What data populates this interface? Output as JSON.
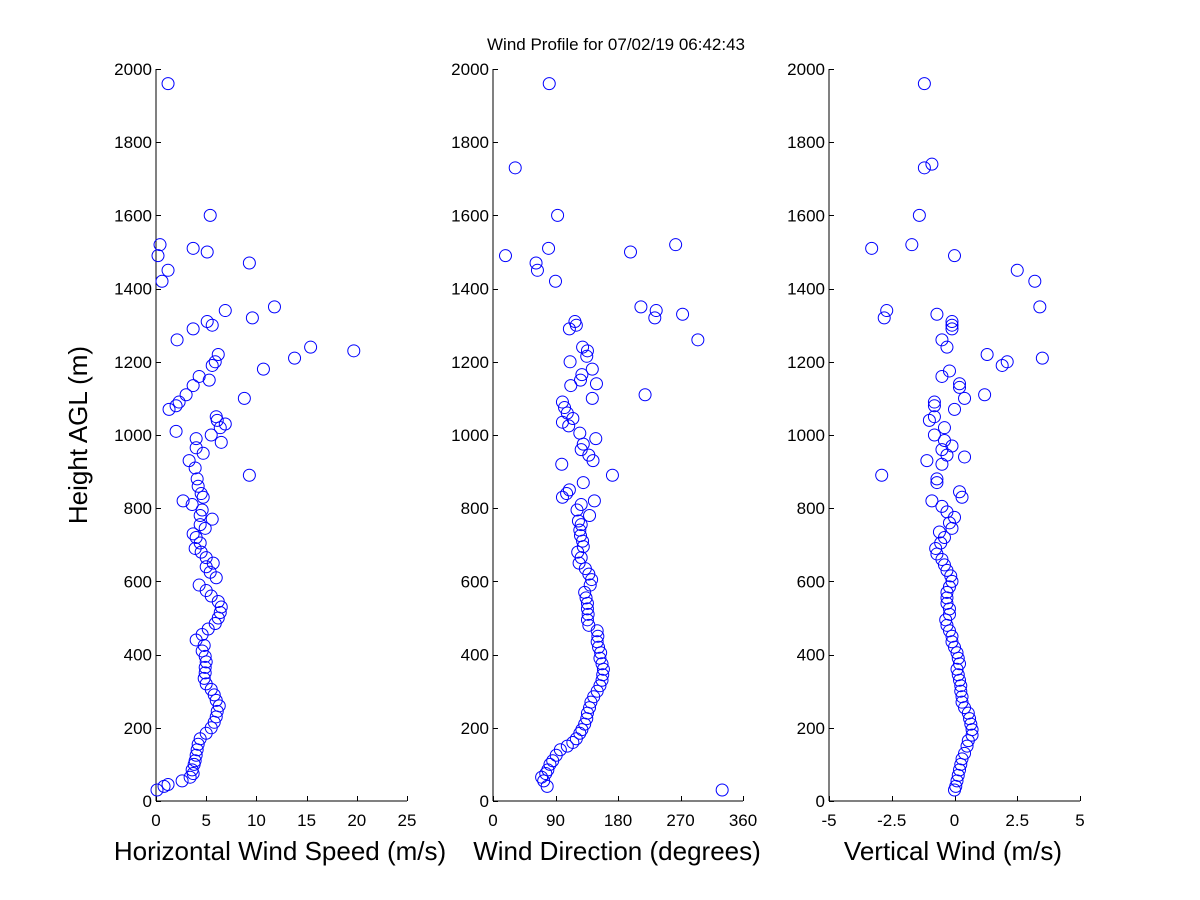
{
  "chart_data": {
    "title": "Wind Profile for  07/02/19 06:42:43",
    "ylabel": "Height AGL (m)",
    "ylim": [
      0,
      2000
    ],
    "yticks": [
      0,
      200,
      400,
      600,
      800,
      1000,
      1200,
      1400,
      1600,
      1800,
      2000
    ],
    "marker_color": "#0000ff",
    "panels": [
      {
        "type": "scatter",
        "xlabel": "Horizontal Wind Speed (m/s)",
        "xlim": [
          0,
          25
        ],
        "xticks": [
          0,
          5,
          10,
          15,
          20,
          25
        ],
        "xtick_labels": [
          "0",
          "5",
          "10",
          "15",
          "20",
          "25"
        ],
        "points": [
          [
            0.1,
            30
          ],
          [
            0.8,
            40
          ],
          [
            1.2,
            45
          ],
          [
            2.6,
            55
          ],
          [
            3.4,
            65
          ],
          [
            3.7,
            75
          ],
          [
            3.6,
            85
          ],
          [
            3.8,
            100
          ],
          [
            3.9,
            110
          ],
          [
            4.0,
            125
          ],
          [
            4.1,
            140
          ],
          [
            4.2,
            155
          ],
          [
            4.4,
            170
          ],
          [
            5.0,
            185
          ],
          [
            5.5,
            200
          ],
          [
            5.8,
            215
          ],
          [
            6.0,
            230
          ],
          [
            6.1,
            245
          ],
          [
            6.3,
            260
          ],
          [
            6.0,
            275
          ],
          [
            5.8,
            290
          ],
          [
            5.5,
            305
          ],
          [
            5.0,
            320
          ],
          [
            4.8,
            335
          ],
          [
            4.9,
            350
          ],
          [
            4.9,
            365
          ],
          [
            5.0,
            380
          ],
          [
            4.9,
            395
          ],
          [
            4.6,
            410
          ],
          [
            4.8,
            425
          ],
          [
            4.0,
            440
          ],
          [
            4.6,
            455
          ],
          [
            5.2,
            470
          ],
          [
            5.9,
            485
          ],
          [
            6.2,
            500
          ],
          [
            6.4,
            515
          ],
          [
            6.5,
            530
          ],
          [
            6.2,
            545
          ],
          [
            5.5,
            560
          ],
          [
            5.0,
            575
          ],
          [
            4.3,
            590
          ],
          [
            6.0,
            610
          ],
          [
            5.4,
            625
          ],
          [
            5.0,
            640
          ],
          [
            5.7,
            650
          ],
          [
            5.0,
            665
          ],
          [
            4.5,
            680
          ],
          [
            3.9,
            690
          ],
          [
            4.4,
            705
          ],
          [
            4.0,
            720
          ],
          [
            3.7,
            730
          ],
          [
            4.9,
            745
          ],
          [
            4.4,
            755
          ],
          [
            5.6,
            770
          ],
          [
            4.4,
            780
          ],
          [
            4.6,
            795
          ],
          [
            3.6,
            810
          ],
          [
            2.7,
            820
          ],
          [
            4.7,
            830
          ],
          [
            4.5,
            840
          ],
          [
            4.2,
            860
          ],
          [
            4.1,
            880
          ],
          [
            9.3,
            890
          ],
          [
            3.9,
            910
          ],
          [
            3.3,
            930
          ],
          [
            4.7,
            950
          ],
          [
            4.0,
            965
          ],
          [
            6.5,
            980
          ],
          [
            4.0,
            990
          ],
          [
            5.5,
            1000
          ],
          [
            2.0,
            1010
          ],
          [
            6.4,
            1020
          ],
          [
            6.9,
            1030
          ],
          [
            6.1,
            1040
          ],
          [
            6.0,
            1050
          ],
          [
            1.3,
            1070
          ],
          [
            2.0,
            1080
          ],
          [
            2.3,
            1090
          ],
          [
            8.8,
            1100
          ],
          [
            3.0,
            1110
          ],
          [
            3.7,
            1135
          ],
          [
            5.3,
            1150
          ],
          [
            4.3,
            1160
          ],
          [
            10.7,
            1180
          ],
          [
            5.6,
            1190
          ],
          [
            5.9,
            1200
          ],
          [
            13.8,
            1210
          ],
          [
            6.2,
            1220
          ],
          [
            19.7,
            1230
          ],
          [
            15.4,
            1240
          ],
          [
            2.1,
            1260
          ],
          [
            3.7,
            1290
          ],
          [
            5.6,
            1300
          ],
          [
            5.1,
            1310
          ],
          [
            9.6,
            1320
          ],
          [
            6.9,
            1340
          ],
          [
            11.8,
            1350
          ],
          [
            0.6,
            1420
          ],
          [
            1.2,
            1450
          ],
          [
            9.3,
            1470
          ],
          [
            0.2,
            1490
          ],
          [
            5.1,
            1500
          ],
          [
            3.7,
            1510
          ],
          [
            0.4,
            1520
          ],
          [
            5.4,
            1600
          ],
          [
            1.2,
            1960
          ]
        ]
      },
      {
        "type": "scatter",
        "xlabel": "Wind Direction (degrees)",
        "xlim": [
          0,
          360
        ],
        "xticks": [
          0,
          90,
          180,
          270,
          360
        ],
        "xtick_labels": [
          "0",
          "90",
          "180",
          "270",
          "360"
        ],
        "points": [
          [
            78,
            40
          ],
          [
            73,
            55
          ],
          [
            70,
            65
          ],
          [
            76,
            75
          ],
          [
            79,
            85
          ],
          [
            82,
            100
          ],
          [
            86,
            110
          ],
          [
            91,
            125
          ],
          [
            97,
            140
          ],
          [
            107,
            150
          ],
          [
            115,
            160
          ],
          [
            120,
            170
          ],
          [
            125,
            185
          ],
          [
            128,
            195
          ],
          [
            132,
            210
          ],
          [
            135,
            225
          ],
          [
            136,
            240
          ],
          [
            139,
            255
          ],
          [
            141,
            270
          ],
          [
            145,
            285
          ],
          [
            150,
            300
          ],
          [
            154,
            315
          ],
          [
            157,
            330
          ],
          [
            158,
            345
          ],
          [
            159,
            360
          ],
          [
            157,
            375
          ],
          [
            154,
            390
          ],
          [
            155,
            405
          ],
          [
            152,
            420
          ],
          [
            150,
            435
          ],
          [
            151,
            450
          ],
          [
            150,
            465
          ],
          [
            138,
            480
          ],
          [
            136,
            495
          ],
          [
            137,
            510
          ],
          [
            136,
            525
          ],
          [
            136,
            540
          ],
          [
            134,
            555
          ],
          [
            132,
            570
          ],
          [
            140,
            590
          ],
          [
            142,
            605
          ],
          [
            138,
            620
          ],
          [
            133,
            635
          ],
          [
            124,
            650
          ],
          [
            127,
            665
          ],
          [
            122,
            680
          ],
          [
            130,
            695
          ],
          [
            129,
            710
          ],
          [
            126,
            725
          ],
          [
            125,
            740
          ],
          [
            127,
            755
          ],
          [
            123,
            765
          ],
          [
            139,
            780
          ],
          [
            121,
            795
          ],
          [
            127,
            810
          ],
          [
            146,
            820
          ],
          [
            100,
            830
          ],
          [
            106,
            840
          ],
          [
            110,
            850
          ],
          [
            130,
            870
          ],
          [
            172,
            890
          ],
          [
            144,
            930
          ],
          [
            138,
            945
          ],
          [
            99,
            920
          ],
          [
            127,
            960
          ],
          [
            130,
            975
          ],
          [
            148,
            990
          ],
          [
            125,
            1005
          ],
          [
            109,
            1025
          ],
          [
            100,
            1035
          ],
          [
            115,
            1045
          ],
          [
            107,
            1060
          ],
          [
            103,
            1075
          ],
          [
            100,
            1090
          ],
          [
            143,
            1100
          ],
          [
            219,
            1110
          ],
          [
            112,
            1135
          ],
          [
            126,
            1150
          ],
          [
            149,
            1140
          ],
          [
            128,
            1165
          ],
          [
            143,
            1180
          ],
          [
            111,
            1200
          ],
          [
            135,
            1215
          ],
          [
            136,
            1230
          ],
          [
            129,
            1240
          ],
          [
            110,
            1290
          ],
          [
            120,
            1300
          ],
          [
            118,
            1310
          ],
          [
            233,
            1320
          ],
          [
            273,
            1330
          ],
          [
            235,
            1340
          ],
          [
            213,
            1350
          ],
          [
            90,
            1420
          ],
          [
            64,
            1450
          ],
          [
            62,
            1470
          ],
          [
            198,
            1500
          ],
          [
            18,
            1490
          ],
          [
            80,
            1510
          ],
          [
            263,
            1520
          ],
          [
            93,
            1600
          ],
          [
            32,
            1730
          ],
          [
            81,
            1960
          ],
          [
            295,
            1260
          ],
          [
            330,
            30
          ]
        ]
      },
      {
        "type": "scatter",
        "xlabel": "Vertical Wind (m/s)",
        "xlim": [
          -5,
          5
        ],
        "xticks": [
          -5,
          -2.5,
          0,
          2.5,
          5
        ],
        "xtick_labels": [
          "-5",
          "-2.5",
          "0",
          "2.5",
          "5"
        ],
        "points": [
          [
            0.0,
            30
          ],
          [
            0.05,
            40
          ],
          [
            0.1,
            55
          ],
          [
            0.15,
            70
          ],
          [
            0.2,
            85
          ],
          [
            0.25,
            100
          ],
          [
            0.3,
            115
          ],
          [
            0.4,
            130
          ],
          [
            0.5,
            150
          ],
          [
            0.55,
            165
          ],
          [
            0.7,
            180
          ],
          [
            0.7,
            195
          ],
          [
            0.65,
            210
          ],
          [
            0.6,
            225
          ],
          [
            0.55,
            240
          ],
          [
            0.4,
            255
          ],
          [
            0.3,
            270
          ],
          [
            0.3,
            285
          ],
          [
            0.25,
            300
          ],
          [
            0.25,
            315
          ],
          [
            0.2,
            330
          ],
          [
            0.15,
            345
          ],
          [
            0.1,
            360
          ],
          [
            0.2,
            375
          ],
          [
            0.15,
            390
          ],
          [
            0.1,
            405
          ],
          [
            0.0,
            420
          ],
          [
            -0.1,
            435
          ],
          [
            -0.1,
            450
          ],
          [
            -0.2,
            465
          ],
          [
            -0.3,
            480
          ],
          [
            -0.35,
            495
          ],
          [
            -0.2,
            510
          ],
          [
            -0.2,
            525
          ],
          [
            -0.3,
            540
          ],
          [
            -0.3,
            555
          ],
          [
            -0.3,
            570
          ],
          [
            -0.2,
            585
          ],
          [
            -0.1,
            600
          ],
          [
            -0.15,
            615
          ],
          [
            -0.3,
            630
          ],
          [
            -0.4,
            645
          ],
          [
            -0.5,
            660
          ],
          [
            -0.7,
            675
          ],
          [
            -0.75,
            690
          ],
          [
            -0.55,
            705
          ],
          [
            -0.4,
            720
          ],
          [
            -0.6,
            735
          ],
          [
            -0.1,
            745
          ],
          [
            -0.2,
            760
          ],
          [
            0.0,
            775
          ],
          [
            -0.3,
            790
          ],
          [
            -0.5,
            805
          ],
          [
            -0.9,
            820
          ],
          [
            0.3,
            830
          ],
          [
            0.2,
            845
          ],
          [
            -0.7,
            870
          ],
          [
            -0.7,
            880
          ],
          [
            -2.9,
            890
          ],
          [
            -0.5,
            920
          ],
          [
            -1.1,
            930
          ],
          [
            0.4,
            940
          ],
          [
            -0.3,
            945
          ],
          [
            -0.5,
            960
          ],
          [
            -0.1,
            970
          ],
          [
            -0.4,
            985
          ],
          [
            -0.8,
            1000
          ],
          [
            -0.4,
            1020
          ],
          [
            -1.0,
            1040
          ],
          [
            -0.8,
            1050
          ],
          [
            0.0,
            1070
          ],
          [
            -0.8,
            1080
          ],
          [
            -0.8,
            1090
          ],
          [
            0.4,
            1100
          ],
          [
            1.2,
            1110
          ],
          [
            0.2,
            1130
          ],
          [
            0.2,
            1140
          ],
          [
            -0.5,
            1160
          ],
          [
            -0.2,
            1175
          ],
          [
            1.9,
            1190
          ],
          [
            2.1,
            1200
          ],
          [
            3.5,
            1210
          ],
          [
            1.3,
            1220
          ],
          [
            -0.3,
            1240
          ],
          [
            -0.5,
            1260
          ],
          [
            -0.1,
            1290
          ],
          [
            -0.1,
            1300
          ],
          [
            -0.1,
            1310
          ],
          [
            -2.8,
            1320
          ],
          [
            -0.7,
            1330
          ],
          [
            -2.7,
            1340
          ],
          [
            3.4,
            1350
          ],
          [
            3.2,
            1420
          ],
          [
            2.5,
            1450
          ],
          [
            0.0,
            1490
          ],
          [
            -3.3,
            1510
          ],
          [
            -1.7,
            1520
          ],
          [
            -1.4,
            1600
          ],
          [
            -1.2,
            1730
          ],
          [
            -0.9,
            1740
          ],
          [
            -1.2,
            1960
          ]
        ]
      }
    ]
  }
}
